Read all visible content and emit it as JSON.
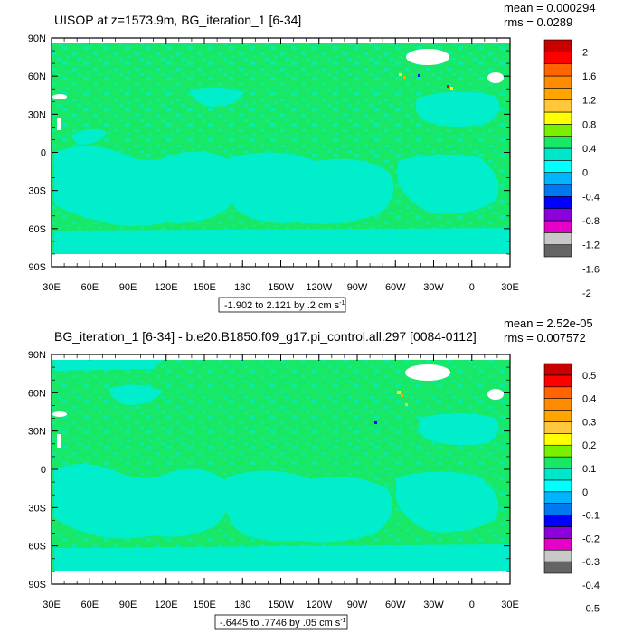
{
  "colors": {
    "zero_band": "#19e766",
    "neg_band": "#00eecc",
    "land": "#ffffff",
    "frame": "#000000"
  },
  "palette": [
    "#646464",
    "#c8c8c8",
    "#e600c8",
    "#8c00dc",
    "#0000ff",
    "#0078f0",
    "#00b4ff",
    "#00ffff",
    "#00e6c8",
    "#19e766",
    "#78f000",
    "#ffff00",
    "#ffc83c",
    "#ffa500",
    "#ff8c00",
    "#ff6400",
    "#ff0000",
    "#c80000"
  ],
  "panels": [
    {
      "title": "UISOP at z=1573.9m, BG_iteration_1 [6-34]",
      "stats": {
        "mean": "mean = 0.000294",
        "rms": "rms = 0.0289"
      },
      "range_label": "-1.902 to 2.121 by .2 cm s",
      "range_sup": "-1",
      "colorbar_labels": [
        "2",
        "1.6",
        "1.2",
        "0.8",
        "0.4",
        "0",
        "-0.4",
        "-0.8",
        "-1.2",
        "-1.6",
        "-2"
      ]
    },
    {
      "title": "BG_iteration_1 [6-34] - b.e20.B1850.f09_g17.pi_control.all.297 [0084-0112]",
      "stats": {
        "mean": "mean = 2.52e-05",
        "rms": "rms = 0.007572"
      },
      "range_label": "-.6445 to .7746 by .05 cm s",
      "range_sup": "-1",
      "colorbar_labels": [
        "0.5",
        "0.4",
        "0.3",
        "0.2",
        "0.1",
        "0",
        "-0.1",
        "-0.2",
        "-0.3",
        "-0.4",
        "-0.5"
      ]
    }
  ],
  "axes": {
    "lat_labels": [
      "90N",
      "60N",
      "30N",
      "0",
      "30S",
      "60S",
      "90S"
    ],
    "lon_labels": [
      "30E",
      "60E",
      "90E",
      "120E",
      "150E",
      "180",
      "150W",
      "120W",
      "90W",
      "60W",
      "30W",
      "0",
      "30E"
    ]
  },
  "chart_data": [
    {
      "type": "heatmap",
      "title": "UISOP at z=1573.9m, BG_iteration_1 [6-34]",
      "xlabel": "",
      "ylabel": "",
      "xlim": [
        "30E",
        "30E (360 deg)"
      ],
      "ylim": [
        -90,
        90
      ],
      "units": "cm s-1",
      "mean": 0.000294,
      "rms": 0.0289,
      "data_min": -1.902,
      "data_max": 2.121,
      "contour_interval": 0.2,
      "colorbar": [
        -2,
        -1.6,
        -1.2,
        -0.8,
        -0.4,
        0,
        0.4,
        0.8,
        1.2,
        1.6,
        2
      ]
    },
    {
      "type": "heatmap",
      "title": "BG_iteration_1 [6-34] - b.e20.B1850.f09_g17.pi_control.all.297 [0084-0112]",
      "xlabel": "",
      "ylabel": "",
      "xlim": [
        "30E",
        "30E (360 deg)"
      ],
      "ylim": [
        -90,
        90
      ],
      "units": "cm s-1",
      "mean": 2.52e-05,
      "rms": 0.007572,
      "data_min": -0.6445,
      "data_max": 0.7746,
      "contour_interval": 0.05,
      "colorbar": [
        -0.5,
        -0.4,
        -0.3,
        -0.2,
        -0.1,
        0,
        0.1,
        0.2,
        0.3,
        0.4,
        0.5
      ]
    }
  ]
}
